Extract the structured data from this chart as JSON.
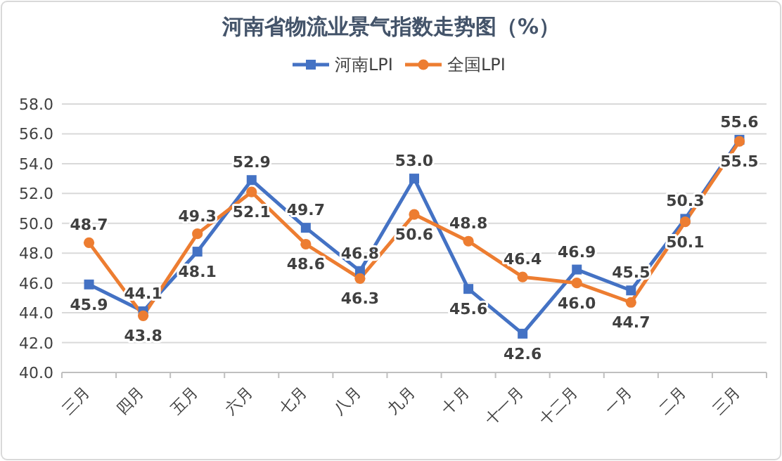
{
  "chart_data": {
    "type": "line",
    "title": "河南省物流业景气指数走势图（%）",
    "categories": [
      "三月",
      "四月",
      "五月",
      "六月",
      "七月",
      "八月",
      "九月",
      "十月",
      "十一月",
      "十二月",
      "一月",
      "二月",
      "三月"
    ],
    "series": [
      {
        "name": "河南LPI",
        "color": "#4472c4",
        "marker": "square",
        "values": [
          45.9,
          44.1,
          48.1,
          52.9,
          49.7,
          46.8,
          53.0,
          45.6,
          42.6,
          46.9,
          45.5,
          50.3,
          55.6
        ],
        "value_labels": [
          "45.9",
          "44.1",
          "48.1",
          "52.9",
          "49.7",
          "46.8",
          "53.0",
          "45.6",
          "42.6",
          "46.9",
          "45.5",
          "50.3",
          "55.6"
        ]
      },
      {
        "name": "全国LPI",
        "color": "#ed7d31",
        "marker": "circle",
        "values": [
          48.7,
          43.8,
          49.3,
          52.1,
          48.6,
          46.3,
          50.6,
          48.8,
          46.4,
          46.0,
          44.7,
          50.1,
          55.5
        ],
        "value_labels": [
          "48.7",
          "43.8",
          "49.3",
          "52.1",
          "48.6",
          "46.3",
          "50.6",
          "48.8",
          "46.4",
          "46.0",
          "44.7",
          "50.1",
          "55.5"
        ]
      }
    ],
    "ylim": [
      40,
      58
    ],
    "yticks": [
      {
        "value": 40,
        "label": "40.0"
      },
      {
        "value": 42,
        "label": "42.0"
      },
      {
        "value": 44,
        "label": "44.0"
      },
      {
        "value": 46,
        "label": "46.0"
      },
      {
        "value": 48,
        "label": "48.0"
      },
      {
        "value": 50,
        "label": "50.0"
      },
      {
        "value": 52,
        "label": "52.0"
      },
      {
        "value": 54,
        "label": "54.0"
      },
      {
        "value": 56,
        "label": "56.0"
      },
      {
        "value": 58,
        "label": "58.0"
      }
    ],
    "grid": "y",
    "legend": "top",
    "line_style": "solid"
  }
}
